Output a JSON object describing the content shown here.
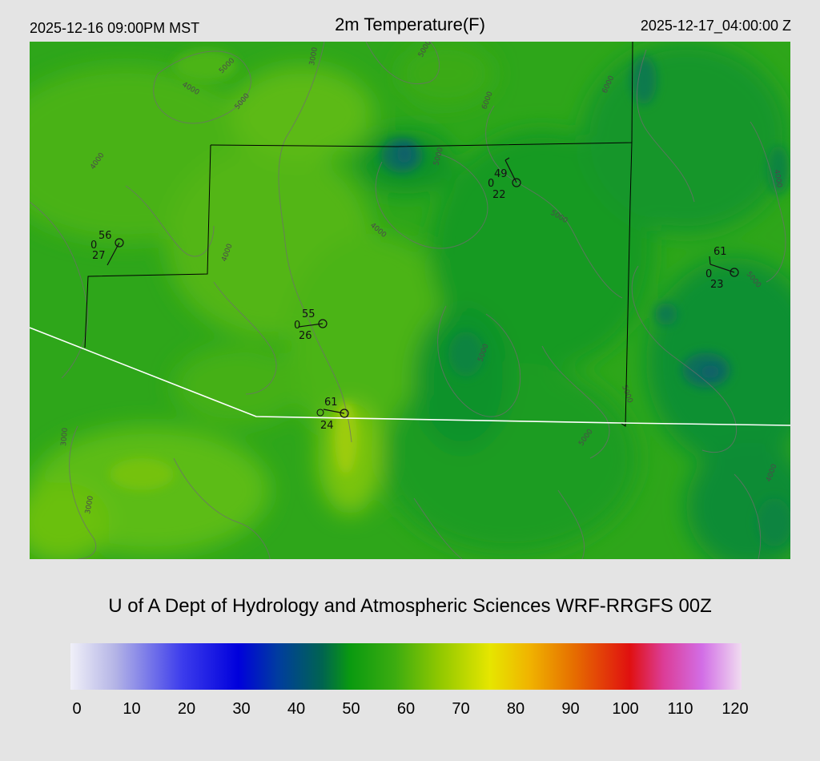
{
  "header": {
    "local_time": "2025-12-16 09:00PM MST",
    "title": "2m Temperature(F)",
    "utc_time": "2025-12-17_04:00:00 Z"
  },
  "credit": "U of A Dept of Hydrology and Atmospheric Sciences WRF-RRGFS 00Z",
  "colorbar": {
    "ticks": [
      "0",
      "10",
      "20",
      "30",
      "40",
      "50",
      "60",
      "70",
      "80",
      "90",
      "100",
      "110",
      "120"
    ],
    "stops": [
      {
        "value": 0,
        "color": "#f0f0f8"
      },
      {
        "value": 8,
        "color": "#b4b4e6"
      },
      {
        "value": 20,
        "color": "#3c3cec"
      },
      {
        "value": 30,
        "color": "#0000dc"
      },
      {
        "value": 37,
        "color": "#003ca0"
      },
      {
        "value": 45,
        "color": "#006450"
      },
      {
        "value": 50,
        "color": "#0a9a10"
      },
      {
        "value": 58,
        "color": "#3cac10"
      },
      {
        "value": 66,
        "color": "#90c800"
      },
      {
        "value": 75,
        "color": "#e6e600"
      },
      {
        "value": 82,
        "color": "#f0b400"
      },
      {
        "value": 90,
        "color": "#e66e00"
      },
      {
        "value": 100,
        "color": "#e01010"
      },
      {
        "value": 106,
        "color": "#dc3c96"
      },
      {
        "value": 113,
        "color": "#d26ee6"
      },
      {
        "value": 120,
        "color": "#f0dcf0"
      }
    ]
  },
  "contour_labels": [
    "4000",
    "5000",
    "3000",
    "4000",
    "5000",
    "5000",
    "4000",
    "6000",
    "5000",
    "4000",
    "5000",
    "3000",
    "3000",
    "5000",
    "4000",
    "5000",
    "5000",
    "4000",
    "5000",
    "6000"
  ],
  "stations": [
    {
      "temp": "56",
      "wind": "0",
      "dewpoint": "27"
    },
    {
      "temp": "49",
      "wind": "0",
      "dewpoint": "22"
    },
    {
      "temp": "61",
      "wind": "0",
      "dewpoint": "23"
    },
    {
      "temp": "55",
      "wind": "0",
      "dewpoint": "26"
    },
    {
      "temp": "61",
      "wind": "0",
      "dewpoint": "24"
    }
  ],
  "colors": {
    "background": "#e4e4e4",
    "field_base": "#2ea61a",
    "boundary_state": "#ffffff",
    "boundary_county": "#000000",
    "contour": "#6e6e6e"
  }
}
